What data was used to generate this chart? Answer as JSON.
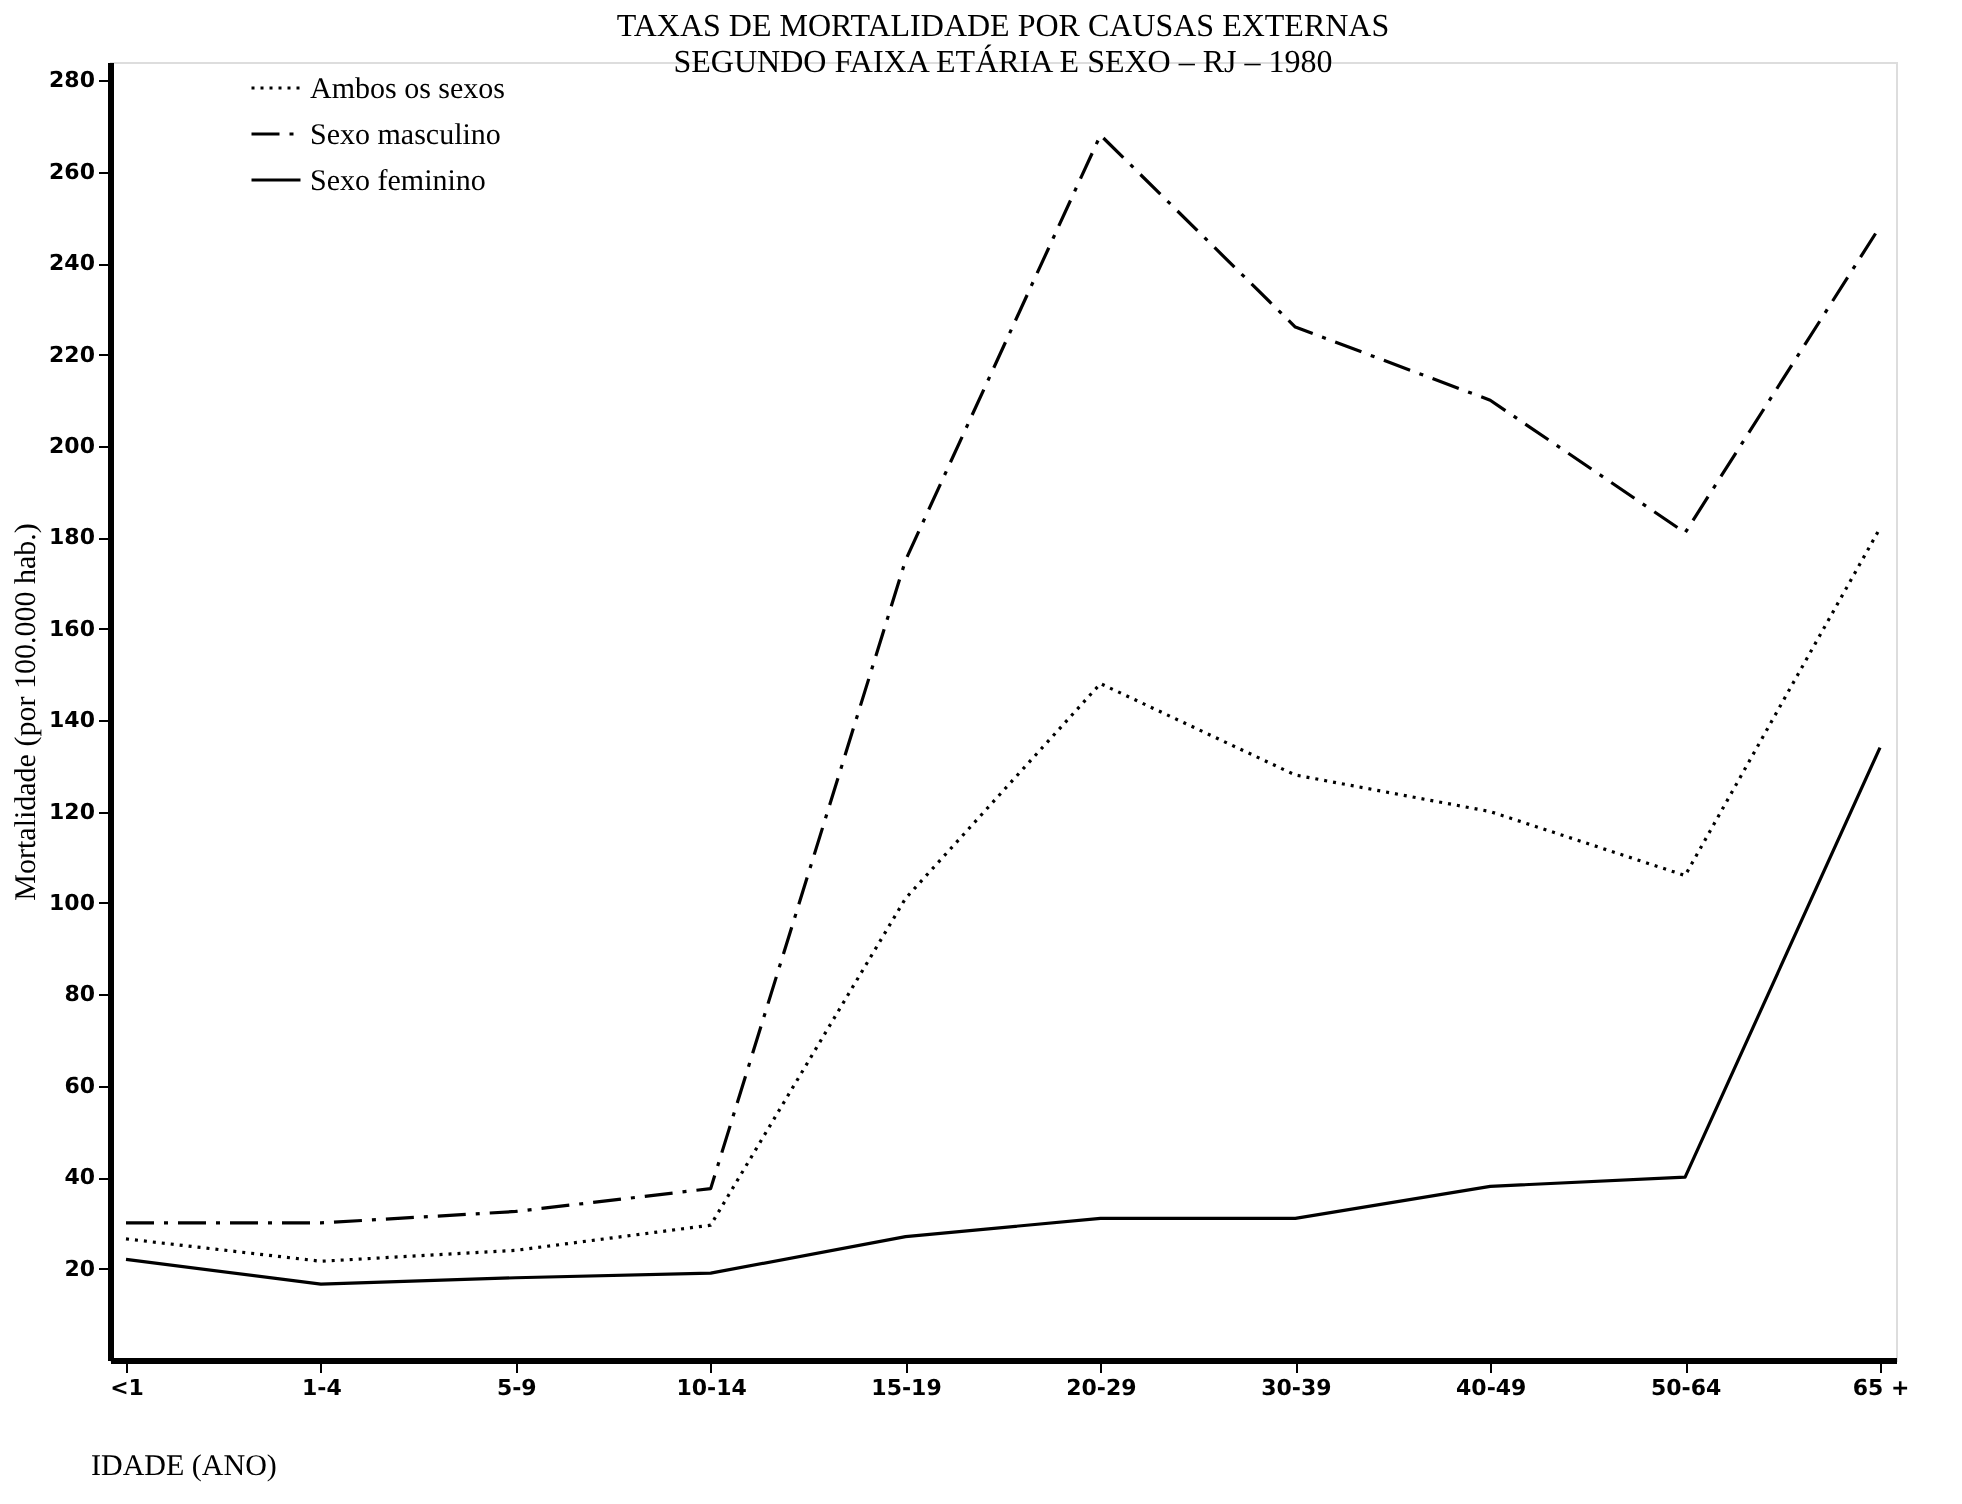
{
  "chart_data": {
    "type": "line",
    "title": [
      "TAXAS DE MORTALIDADE POR CAUSAS EXTERNAS",
      "SEGUNDO FAIXA ETÁRIA E SEXO – RJ – 1980"
    ],
    "xlabel": "IDADE (ANO)",
    "ylabel": "Mortalidade (por 100.000 hab.)",
    "categories": [
      "<1",
      "1-4",
      "5-9",
      "10-14",
      "15-19",
      "20-29",
      "30-39",
      "40-49",
      "50-64",
      "65 +"
    ],
    "series": [
      {
        "name": "Ambos os sexos",
        "color": "#000000",
        "line_style": "dotted",
        "values": [
          26.5,
          21.6,
          24,
          29.5,
          101,
          148,
          128,
          120,
          106,
          182
        ]
      },
      {
        "name": "Sexo masculino",
        "color": "#000000",
        "line_style": "dashed",
        "values": [
          30,
          30,
          32.5,
          37.5,
          175,
          268,
          226,
          210,
          181,
          248
        ]
      },
      {
        "name": "Sexo feminino",
        "color": "#000000",
        "line_style": "solid",
        "values": [
          22,
          16.6,
          18,
          19,
          27,
          31,
          31,
          38,
          40,
          134
        ]
      }
    ],
    "ylim": [
      0,
      284
    ],
    "yticks": [
      20,
      40,
      60,
      80,
      100,
      120,
      140,
      160,
      180,
      200,
      220,
      240,
      260,
      280
    ],
    "grid": false,
    "legend": "top left",
    "marker": "none"
  }
}
